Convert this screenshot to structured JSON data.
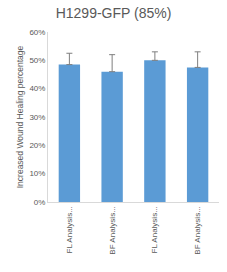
{
  "chart_data": {
    "type": "bar",
    "title": "H1299-GFP (85%)",
    "y_label": "Increased Wound Healing percentage",
    "categories": [
      "FL Analysis...",
      "BF Analysis...",
      "FL Analysis...",
      "BF Analysis..."
    ],
    "values": [
      48.5,
      46,
      50,
      47.5
    ],
    "errors": [
      4,
      6,
      3,
      5.5
    ],
    "color": "#5b9bd5",
    "ylim": [
      0,
      60
    ],
    "yticks": [
      {
        "value": 0,
        "label": "0%"
      },
      {
        "value": 10,
        "label": "10%"
      },
      {
        "value": 20,
        "label": "20%"
      },
      {
        "value": 30,
        "label": "30%"
      },
      {
        "value": 40,
        "label": "40%"
      },
      {
        "value": 50,
        "label": "50%"
      },
      {
        "value": 60,
        "label": "60%"
      }
    ],
    "grid": false
  }
}
